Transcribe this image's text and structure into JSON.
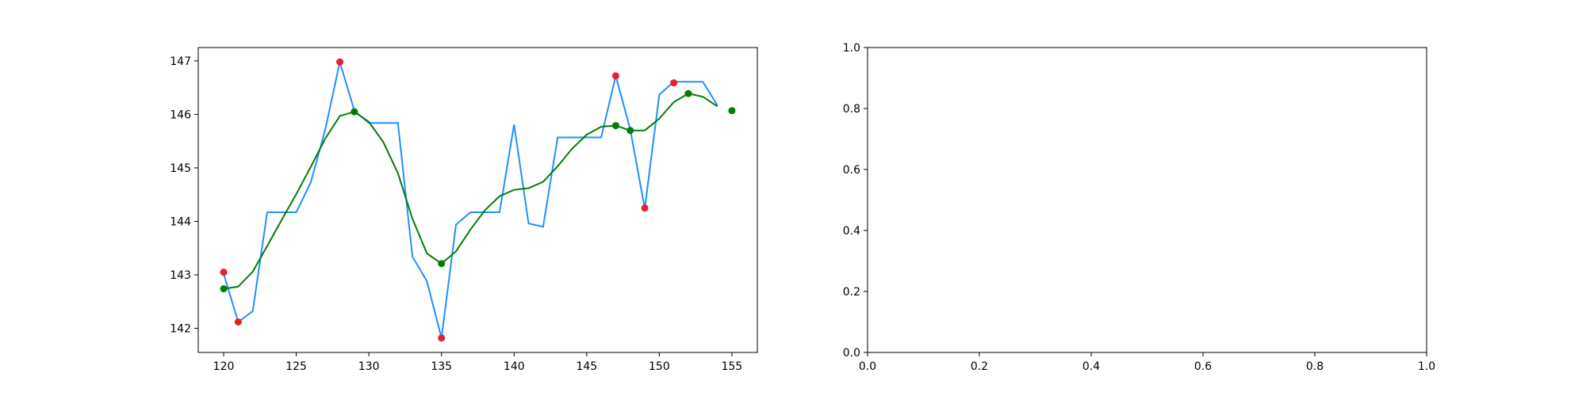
{
  "chart_data": [
    {
      "type": "line",
      "title": "",
      "xlabel": "",
      "ylabel": "",
      "xlim": [
        118.25,
        156.75
      ],
      "ylim": [
        141.55,
        147.25
      ],
      "grid": false,
      "xticks": [
        120,
        125,
        130,
        135,
        140,
        145,
        150,
        155
      ],
      "yticks": [
        142,
        143,
        144,
        145,
        146,
        147
      ],
      "series": [
        {
          "kind": "line",
          "color": "#1e90ff",
          "x": [
            120,
            121,
            122,
            123,
            124,
            125,
            126,
            127,
            128,
            129,
            130,
            131,
            132,
            133,
            134,
            135,
            136,
            137,
            138,
            139,
            140,
            141,
            142,
            143,
            144,
            145,
            146,
            147,
            148,
            149,
            150,
            151,
            152,
            153,
            154
          ],
          "y": [
            143.02,
            142.12,
            142.32,
            144.17,
            144.17,
            144.17,
            144.73,
            145.72,
            146.98,
            146.07,
            145.84,
            145.84,
            145.84,
            143.34,
            142.88,
            141.82,
            143.94,
            144.17,
            144.17,
            144.17,
            145.81,
            143.96,
            143.9,
            145.57,
            145.57,
            145.57,
            145.57,
            146.72,
            145.72,
            144.24,
            146.37,
            146.61,
            146.61,
            146.61,
            146.17
          ]
        },
        {
          "kind": "line",
          "color": "#008000",
          "x": [
            120,
            121,
            122,
            123,
            124,
            125,
            126,
            127,
            128,
            129,
            130,
            131,
            132,
            133,
            134,
            135,
            136,
            137,
            138,
            139,
            140,
            141,
            142,
            143,
            144,
            145,
            146,
            147,
            148,
            149,
            150,
            151,
            152,
            153,
            154
          ],
          "y": [
            142.74,
            142.78,
            143.06,
            143.54,
            144.03,
            144.51,
            145.02,
            145.55,
            145.97,
            146.05,
            145.86,
            145.48,
            144.9,
            144.05,
            143.4,
            143.21,
            143.44,
            143.85,
            144.21,
            144.47,
            144.59,
            144.62,
            144.74,
            145.03,
            145.36,
            145.62,
            145.77,
            145.79,
            145.7,
            145.7,
            145.92,
            146.23,
            146.39,
            146.33,
            146.15
          ]
        },
        {
          "kind": "scatter",
          "color": "#e8202a",
          "x": [
            120,
            121,
            128,
            135,
            147,
            149,
            151
          ],
          "y": [
            143.05,
            142.12,
            146.98,
            141.82,
            146.72,
            144.25,
            146.59
          ]
        },
        {
          "kind": "scatter",
          "color": "#008000",
          "x": [
            120,
            129,
            135,
            147,
            148,
            152,
            155
          ],
          "y": [
            142.74,
            146.05,
            143.21,
            145.79,
            145.7,
            146.39,
            146.07
          ]
        }
      ]
    },
    {
      "type": "line",
      "title": "",
      "xlabel": "",
      "ylabel": "",
      "xlim": [
        0,
        1
      ],
      "ylim": [
        0,
        1
      ],
      "grid": false,
      "xticks": [
        0.0,
        0.2,
        0.4,
        0.6,
        0.8,
        1.0
      ],
      "yticks": [
        0.0,
        0.2,
        0.4,
        0.6,
        0.8,
        1.0
      ],
      "xtick_labels": [
        "0.0",
        "0.2",
        "0.4",
        "0.6",
        "0.8",
        "1.0"
      ],
      "ytick_labels": [
        "0.0",
        "0.2",
        "0.4",
        "0.6",
        "0.8",
        "1.0"
      ],
      "series": []
    }
  ]
}
